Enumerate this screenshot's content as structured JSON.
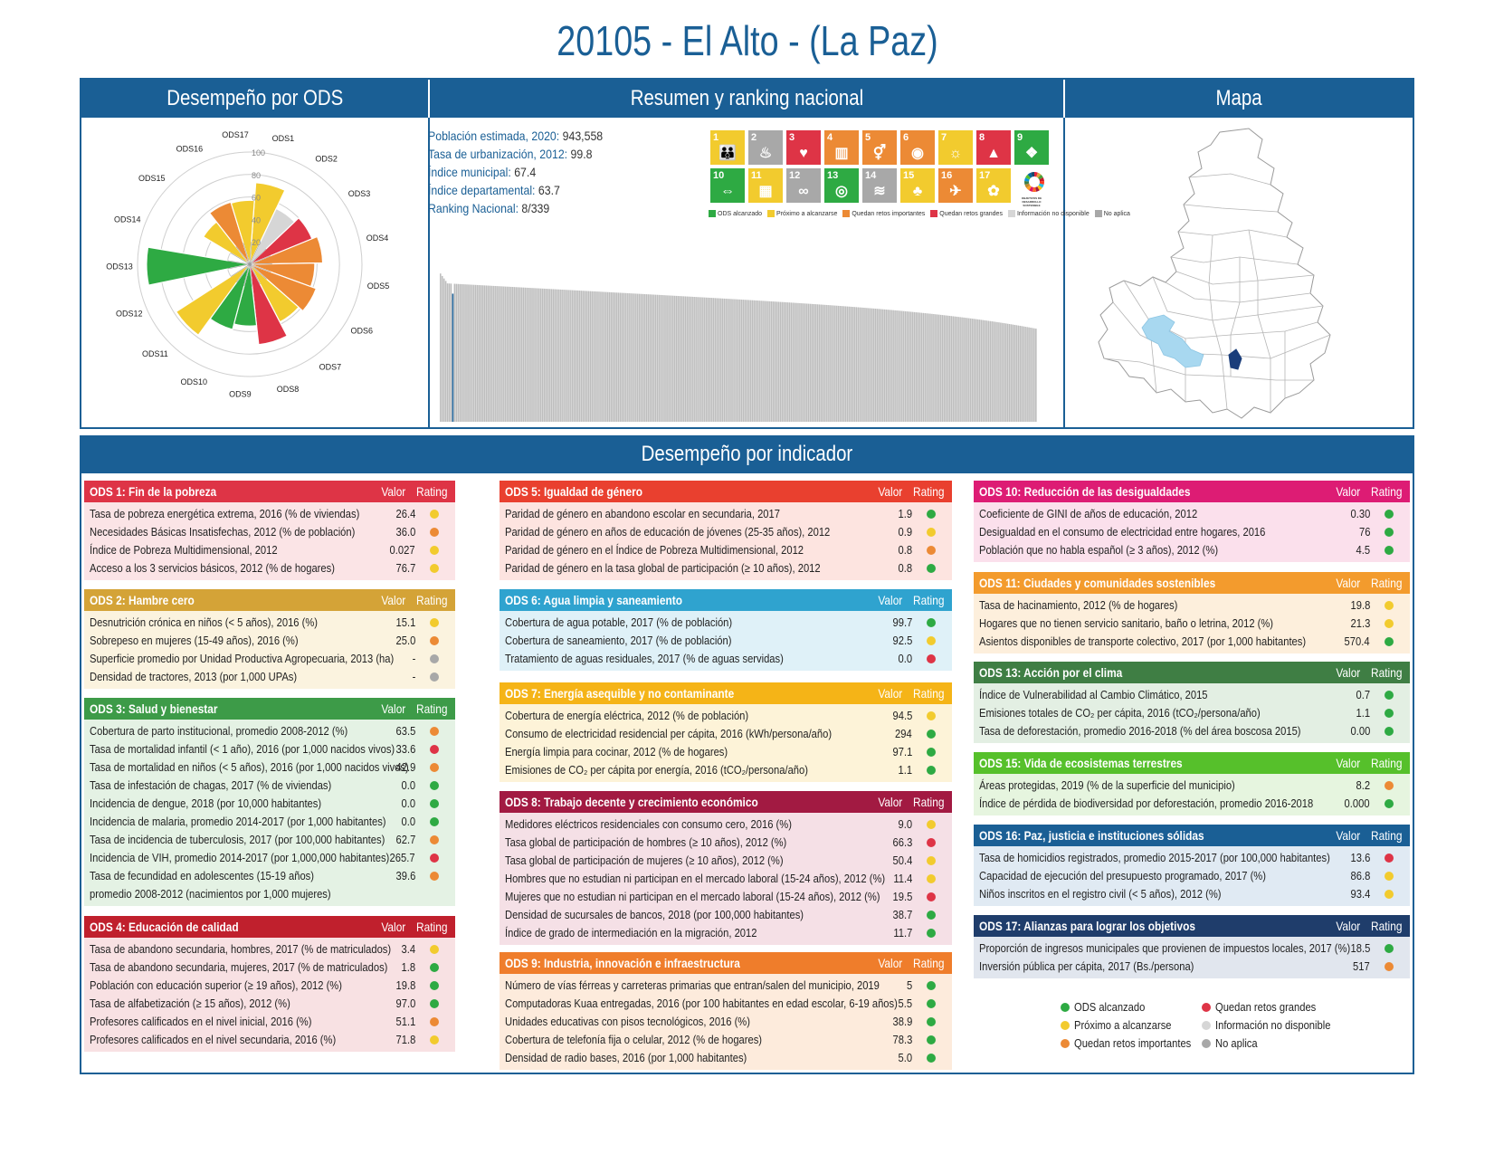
{
  "title": "20105 - El Alto - (La Paz)",
  "colors": {
    "green": "#2eaa43",
    "yellow": "#f2cb2e",
    "orange": "#ec8a35",
    "red": "#de3446",
    "lightgrey": "#d6d6d6",
    "grey": "#a8a8a8",
    "blue": "#1a5f95"
  },
  "panels": {
    "ods": "Desempeño por ODS",
    "summary": "Resumen y ranking nacional",
    "map": "Mapa"
  },
  "summary": [
    {
      "label": "Población estimada, 2020:",
      "value": "943,558"
    },
    {
      "label": "Tasa de urbanización, 2012:",
      "value": "99.8"
    },
    {
      "label": "Índice municipal:",
      "value": "67.4"
    },
    {
      "label": "Índice departamental:",
      "value": "63.7"
    },
    {
      "label": "Ranking Nacional:",
      "value": "8/339"
    }
  ],
  "sdg_tiles": [
    {
      "num": "1",
      "color": "#f2cb2e",
      "icon": "family-icon"
    },
    {
      "num": "2",
      "color": "#a8a8a8",
      "icon": "bowl-icon"
    },
    {
      "num": "3",
      "color": "#de3446",
      "icon": "heartbeat-icon"
    },
    {
      "num": "4",
      "color": "#ec8a35",
      "icon": "book-icon"
    },
    {
      "num": "5",
      "color": "#ec8a35",
      "icon": "gender-icon"
    },
    {
      "num": "6",
      "color": "#ec8a35",
      "icon": "water-drop-icon"
    },
    {
      "num": "7",
      "color": "#f2cb2e",
      "icon": "sun-icon"
    },
    {
      "num": "8",
      "color": "#de3446",
      "icon": "growth-chart-icon"
    },
    {
      "num": "9",
      "color": "#2eaa43",
      "icon": "cubes-icon"
    },
    {
      "num": "10",
      "color": "#2eaa43",
      "icon": "equal-arrows-icon"
    },
    {
      "num": "11",
      "color": "#f2cb2e",
      "icon": "buildings-icon"
    },
    {
      "num": "12",
      "color": "#a8a8a8",
      "icon": "infinity-icon"
    },
    {
      "num": "13",
      "color": "#2eaa43",
      "icon": "eye-globe-icon"
    },
    {
      "num": "14",
      "color": "#a8a8a8",
      "icon": "fish-icon"
    },
    {
      "num": "15",
      "color": "#f2cb2e",
      "icon": "tree-icon"
    },
    {
      "num": "16",
      "color": "#ec8a35",
      "icon": "dove-icon"
    },
    {
      "num": "17",
      "color": "#f2cb2e",
      "icon": "flower-icon"
    }
  ],
  "sdg_logo_text": "OBJETIVOS DE DESARROLLO SOSTENIBLE",
  "sdg_legend": [
    {
      "label": "ODS alcanzado",
      "color": "#2eaa43"
    },
    {
      "label": "Próximo a alcanzarse",
      "color": "#f2cb2e"
    },
    {
      "label": "Quedan retos importantes",
      "color": "#ec8a35"
    },
    {
      "label": "Quedan retos grandes",
      "color": "#de3446"
    },
    {
      "label": "Información no disponible",
      "color": "#d6d6d6"
    },
    {
      "label": "No aplica",
      "color": "#a8a8a8"
    }
  ],
  "chart_data": [
    {
      "type": "polar-bar",
      "categories": [
        "ODS1",
        "ODS2",
        "ODS3",
        "ODS4",
        "ODS5",
        "ODS6",
        "ODS7",
        "ODS8",
        "ODS9",
        "ODS10",
        "ODS11",
        "ODS12",
        "ODS13",
        "ODS14",
        "ODS15",
        "ODS16",
        "ODS17"
      ],
      "values": [
        73,
        0,
        60,
        65,
        58,
        63,
        58,
        72,
        55,
        60,
        78,
        0,
        92,
        0,
        48,
        58,
        57
      ],
      "ratings": [
        "yellow",
        "lightgrey",
        "red",
        "orange",
        "orange",
        "orange",
        "yellow",
        "red",
        "green",
        "green",
        "yellow",
        "lightgrey",
        "green",
        "lightgrey",
        "yellow",
        "orange",
        "yellow"
      ],
      "rlim": [
        0,
        100
      ],
      "radial_ticks": [
        "20",
        "40",
        "60",
        "80",
        "100"
      ]
    },
    {
      "type": "bar",
      "description_of_series": "Índice municipal de los 339 municipios ordenados de mayor a menor; destacado El Alto en posición 8",
      "n": 339,
      "highlight_rank": 8,
      "ylim": [
        0,
        100
      ],
      "max_value": 78,
      "min_value": 40,
      "highlight_value": 67.4
    }
  ],
  "indicators_title": "Desempeño por indicador",
  "col_valor": "Valor",
  "col_rating": "Rating",
  "sections": [
    {
      "title": "ODS 1: Fin de la pobreza",
      "color": "#de3446",
      "bg": "#fbe4e6",
      "rows": [
        {
          "label": "Tasa de pobreza energética extrema, 2016 (% de viviendas)",
          "value": "26.4",
          "rating": "yellow"
        },
        {
          "label": "Necesidades Básicas Insatisfechas, 2012 (% de población)",
          "value": "36.0",
          "rating": "orange"
        },
        {
          "label": "Índice de Pobreza Multidimensional, 2012",
          "value": "0.027",
          "rating": "yellow"
        },
        {
          "label": "Acceso a los 3 servicios básicos, 2012 (% de hogares)",
          "value": "76.7",
          "rating": "yellow"
        }
      ]
    },
    {
      "title": "ODS 2: Hambre cero",
      "color": "#d4a337",
      "bg": "#fbf3df",
      "rows": [
        {
          "label": "Desnutrición crónica en niños (< 5 años), 2016 (%)",
          "value": "15.1",
          "rating": "yellow"
        },
        {
          "label": "Sobrepeso en mujeres (15-49 años), 2016 (%)",
          "value": "25.0",
          "rating": "orange"
        },
        {
          "label": "Superficie promedio por Unidad Productiva Agropecuaria, 2013 (ha)",
          "value": "-",
          "rating": "grey"
        },
        {
          "label": "Densidad de tractores, 2013 (por 1,000 UPAs)",
          "value": "-",
          "rating": "grey"
        }
      ]
    },
    {
      "title": "ODS 3: Salud y bienestar",
      "color": "#3d9b48",
      "bg": "#e4f2e4",
      "rows": [
        {
          "label": "Cobertura de parto institucional, promedio 2008-2012 (%)",
          "value": "63.5",
          "rating": "orange"
        },
        {
          "label": "Tasa de mortalidad infantil (< 1 año), 2016 (por 1,000 nacidos vivos)",
          "value": "33.6",
          "rating": "red"
        },
        {
          "label": "Tasa de mortalidad en niños (< 5 años), 2016 (por 1,000 nacidos vivos)",
          "value": "42.9",
          "rating": "orange"
        },
        {
          "label": "Tasa de infestación de chagas, 2017 (% de viviendas)",
          "value": "0.0",
          "rating": "green"
        },
        {
          "label": "Incidencia de dengue, 2018 (por 10,000 habitantes)",
          "value": "0.0",
          "rating": "green"
        },
        {
          "label": "Incidencia de malaria, promedio 2014-2017 (por 1,000 habitantes)",
          "value": "0.0",
          "rating": "green"
        },
        {
          "label": "Tasa de incidencia de tuberculosis, 2017 (por 100,000 habitantes)",
          "value": "62.7",
          "rating": "orange"
        },
        {
          "label": "Incidencia de VIH, promedio 2014-2017 (por 1,000,000 habitantes)",
          "value": "265.7",
          "rating": "red"
        },
        {
          "label": "Tasa de fecundidad en adolescentes (15-19 años) promedio 2008-2012 (nacimientos por 1,000 mujeres)",
          "value": "39.6",
          "rating": "orange",
          "tall": true
        }
      ]
    },
    {
      "title": "ODS 4: Educación de calidad",
      "color": "#c0202d",
      "bg": "#f8e1e3",
      "rows": [
        {
          "label": "Tasa de abandono secundaria, hombres, 2017 (% de matriculados)",
          "value": "3.4",
          "rating": "yellow"
        },
        {
          "label": "Tasa de abandono secundaria, mujeres, 2017 (% de matriculados)",
          "value": "1.8",
          "rating": "green"
        },
        {
          "label": "Población con educación superior (≥ 19 años), 2012 (%)",
          "value": "19.8",
          "rating": "green"
        },
        {
          "label": "Tasa de alfabetización (≥ 15 años), 2012 (%)",
          "value": "97.0",
          "rating": "green"
        },
        {
          "label": "Profesores calificados en el nivel inicial, 2016 (%)",
          "value": "51.1",
          "rating": "orange"
        },
        {
          "label": "Profesores calificados en el nivel secundaria, 2016 (%)",
          "value": "71.8",
          "rating": "yellow"
        }
      ]
    },
    {
      "title": "ODS 5: Igualdad de género",
      "color": "#e9402f",
      "bg": "#fde4e0",
      "rows": [
        {
          "label": "Paridad de género en abandono escolar en secundaria, 2017",
          "value": "1.9",
          "rating": "green"
        },
        {
          "label": "Paridad de género en años de educación de jóvenes (25-35 años), 2012",
          "value": "0.9",
          "rating": "yellow"
        },
        {
          "label": "Paridad de género en el Índice de Pobreza Multidimensional, 2012",
          "value": "0.8",
          "rating": "orange"
        },
        {
          "label": "Paridad de género en la tasa global de participación (≥ 10 años), 2012",
          "value": "0.8",
          "rating": "green"
        }
      ]
    },
    {
      "title": "ODS 6: Agua limpia y saneamiento",
      "color": "#2fa3cf",
      "bg": "#dff1f8",
      "rows": [
        {
          "label": "Cobertura de agua potable, 2017 (% de población)",
          "value": "99.7",
          "rating": "green"
        },
        {
          "label": "Cobertura de saneamiento, 2017 (% de población)",
          "value": "92.5",
          "rating": "yellow"
        },
        {
          "label": "Tratamiento de aguas residuales, 2017 (% de aguas servidas)",
          "value": "0.0",
          "rating": "red"
        }
      ]
    },
    {
      "title": "ODS 7: Energía asequible y no contaminante",
      "color": "#f5b417",
      "bg": "#fdf3d8",
      "rows": [
        {
          "label": "Cobertura de energía eléctrica, 2012 (% de población)",
          "value": "94.5",
          "rating": "yellow"
        },
        {
          "label": "Consumo de electricidad residencial per cápita, 2016 (kWh/persona/año)",
          "value": "294",
          "rating": "green"
        },
        {
          "label": "Energía limpia para cocinar, 2012 (% de hogares)",
          "value": "97.1",
          "rating": "green"
        },
        {
          "label": "Emisiones de CO₂ per cápita por energía, 2016 (tCO₂/persona/año)",
          "value": "1.1",
          "rating": "green"
        }
      ]
    },
    {
      "title": "ODS 8: Trabajo decente y crecimiento económico",
      "color": "#a21a42",
      "bg": "#f5e0e6",
      "rows": [
        {
          "label": "Medidores eléctricos residenciales con consumo cero, 2016 (%)",
          "value": "9.0",
          "rating": "yellow"
        },
        {
          "label": "Tasa global de participación de hombres (≥ 10 años), 2012 (%)",
          "value": "66.3",
          "rating": "red"
        },
        {
          "label": "Tasa global de participación de mujeres (≥ 10 años), 2012 (%)",
          "value": "50.4",
          "rating": "yellow"
        },
        {
          "label": "Hombres que no estudian ni participan en el mercado laboral (15-24 años), 2012 (%)",
          "value": "11.4",
          "rating": "yellow"
        },
        {
          "label": "Mujeres que no estudian ni participan en el mercado laboral (15-24 años), 2012 (%)",
          "value": "19.5",
          "rating": "red"
        },
        {
          "label": "Densidad de sucursales de bancos, 2018 (por 100,000 habitantes)",
          "value": "38.7",
          "rating": "green"
        },
        {
          "label": "Índice de grado de intermediación en la migración, 2012",
          "value": "11.7",
          "rating": "green"
        }
      ]
    },
    {
      "title": "ODS 9: Industria, innovación e infraestructura",
      "color": "#ef7d2b",
      "bg": "#fdebdc",
      "rows": [
        {
          "label": "Número de vías férreas y carreteras primarias que entran/salen del municipio, 2019",
          "value": "5",
          "rating": "green"
        },
        {
          "label": "Computadoras Kuaa entregadas, 2016 (por 100 habitantes en edad escolar, 6-19 años)",
          "value": "5.5",
          "rating": "green"
        },
        {
          "label": "Unidades educativas con pisos tecnológicos, 2016 (%)",
          "value": "38.9",
          "rating": "green"
        },
        {
          "label": "Cobertura de telefonía fija o celular, 2012 (% de hogares)",
          "value": "78.3",
          "rating": "green"
        },
        {
          "label": "Densidad de radio bases, 2016 (por 1,000 habitantes)",
          "value": "5.0",
          "rating": "green"
        }
      ]
    },
    {
      "title": "ODS 10: Reducción de las desigualdades",
      "color": "#dd1c74",
      "bg": "#fbe0ec",
      "rows": [
        {
          "label": "Coeficiente de GINI de años de educación, 2012",
          "value": "0.30",
          "rating": "green"
        },
        {
          "label": "Desigualdad en el consumo de electricidad entre hogares, 2016",
          "value": "76",
          "rating": "green"
        },
        {
          "label": "Población que no habla español (≥ 3 años), 2012 (%)",
          "value": "4.5",
          "rating": "green"
        }
      ]
    },
    {
      "title": "ODS 11: Ciudades y comunidades sostenibles",
      "color": "#f39b2d",
      "bg": "#fdefdc",
      "rows": [
        {
          "label": "Tasa de hacinamiento, 2012 (% de hogares)",
          "value": "19.8",
          "rating": "yellow"
        },
        {
          "label": "Hogares que no tienen servicio sanitario, baño o letrina, 2012 (%)",
          "value": "21.3",
          "rating": "yellow"
        },
        {
          "label": "Asientos disponibles de transporte colectivo, 2017 (por 1,000 habitantes)",
          "value": "570.4",
          "rating": "green"
        }
      ]
    },
    {
      "title": "ODS 13: Acción por el clima",
      "color": "#3f7e44",
      "bg": "#e3efe3",
      "rows": [
        {
          "label": "Índice de Vulnerabilidad al Cambio Climático, 2015",
          "value": "0.7",
          "rating": "green"
        },
        {
          "label": "Emisiones totales de CO₂ per cápita, 2016 (tCO₂/persona/año)",
          "value": "1.1",
          "rating": "green"
        },
        {
          "label": "Tasa de deforestación, promedio 2016-2018 (% del área boscosa 2015)",
          "value": "0.00",
          "rating": "green"
        }
      ]
    },
    {
      "title": "ODS 15: Vida de ecosistemas terrestres",
      "color": "#56c02b",
      "bg": "#e6f5df",
      "rows": [
        {
          "label": "Áreas protegidas, 2019 (% de la superficie del municipio)",
          "value": "8.2",
          "rating": "orange"
        },
        {
          "label": "Índice de pérdida de biodiversidad por deforestación, promedio 2016-2018",
          "value": "0.000",
          "rating": "green"
        }
      ]
    },
    {
      "title": "ODS 16: Paz, justicia e instituciones sólidas",
      "color": "#1a5f95",
      "bg": "#e0eaf3",
      "rows": [
        {
          "label": "Tasa de homicidios registrados, promedio 2015-2017 (por 100,000 habitantes)",
          "value": "13.6",
          "rating": "red"
        },
        {
          "label": "Capacidad de ejecución del presupuesto programado, 2017 (%)",
          "value": "86.8",
          "rating": "yellow"
        },
        {
          "label": "Niños inscritos en el registro civil (< 5 años), 2012 (%)",
          "value": "93.4",
          "rating": "yellow"
        }
      ]
    },
    {
      "title": "ODS 17: Alianzas para lograr los objetivos",
      "color": "#1f3d6b",
      "bg": "#e1e6ee",
      "rows": [
        {
          "label": "Proporción de ingresos municipales que provienen de impuestos locales, 2017 (%)",
          "value": "18.5",
          "rating": "green"
        },
        {
          "label": "Inversión pública per cápita, 2017 (Bs./persona)",
          "value": "517",
          "rating": "orange"
        }
      ]
    }
  ],
  "legend": [
    {
      "label": "ODS alcanzado",
      "rating": "green"
    },
    {
      "label": "Próximo a alcanzarse",
      "rating": "yellow"
    },
    {
      "label": "Quedan retos importantes",
      "rating": "orange"
    },
    {
      "label": "Quedan retos grandes",
      "rating": "red"
    },
    {
      "label": "Información no disponible",
      "rating": "lightgrey"
    },
    {
      "label": "No aplica",
      "rating": "grey"
    }
  ]
}
